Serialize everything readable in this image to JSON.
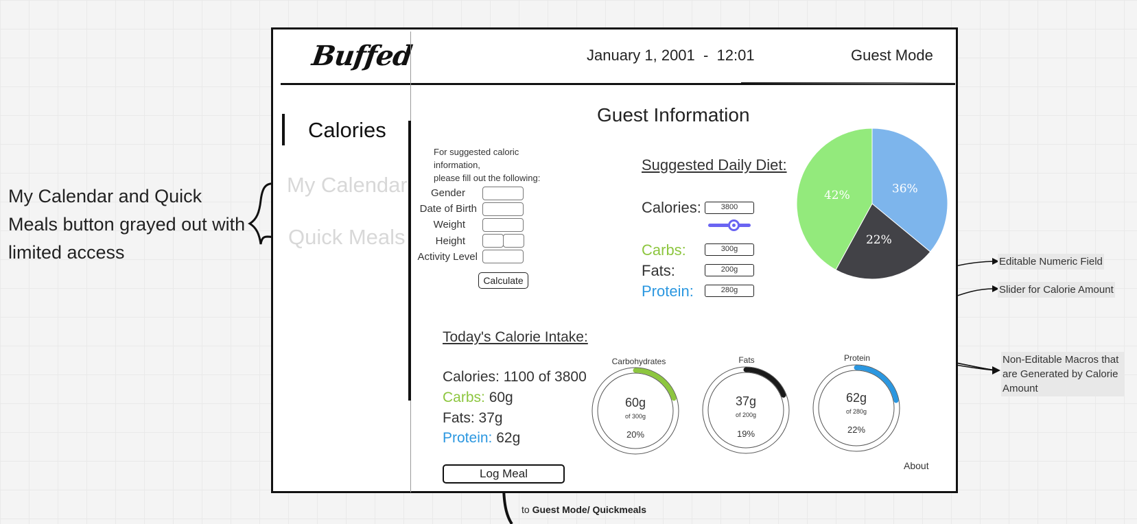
{
  "app": {
    "logo_text": "Buffed"
  },
  "header": {
    "datetime": "January 1, 2001  -  12:01",
    "mode": "Guest Mode"
  },
  "sidebar": {
    "items": [
      {
        "label": "Calories",
        "state": "active"
      },
      {
        "label": "My Calendar",
        "state": "disabled"
      },
      {
        "label": "Quick Meals",
        "state": "disabled"
      }
    ]
  },
  "annotations": {
    "left_note": "My Calendar and Quick Meals button grayed out with limited access",
    "editable_field": "Editable Numeric Field",
    "slider": "Slider for Calorie Amount",
    "non_editable": "Non-Editable Macros that are Generated by Calorie Amount"
  },
  "main": {
    "title": "Guest Information",
    "form": {
      "instructions_line1": "For suggested caloric information,",
      "instructions_line2": "please fill out the following:",
      "fields": [
        "Gender",
        "Date of Birth",
        "Weight",
        "Height",
        "Activity Level"
      ],
      "calculate_label": "Calculate"
    },
    "diet": {
      "title": "Suggested Daily Diet:",
      "calories_label": "Calories:",
      "calories_value": "3800",
      "carbs_label": "Carbs:",
      "carbs_value": "300g",
      "fats_label": "Fats:",
      "fats_value": "200g",
      "protein_label": "Protein:",
      "protein_value": "280g",
      "slider_value_fraction": 0.5
    },
    "intake": {
      "title": "Today's Calorie Intake:",
      "calories_line": "Calories: 1100 of 3800",
      "carbs_label": "Carbs:",
      "carbs_value": " 60g",
      "fats_line": "Fats: 37g",
      "protein_label": "Protein:",
      "protein_value": " 62g"
    },
    "rings": [
      {
        "title": "Carbohydrates",
        "value": "60g",
        "of": "of 300g",
        "pct": "20%",
        "fraction": 0.2,
        "color": "#8dc63f"
      },
      {
        "title": "Fats",
        "value": "37g",
        "of": "of 200g",
        "pct": "19%",
        "fraction": 0.19,
        "color": "#1a1a1a"
      },
      {
        "title": "Protein",
        "value": "62g",
        "of": "of 280g",
        "pct": "22%",
        "fraction": 0.22,
        "color": "#2b97e0"
      }
    ],
    "log_meal_label": "Log Meal",
    "about_label": "About",
    "footer_link_prefix": "to ",
    "footer_link_target": "Guest Mode/ Quickmeals"
  },
  "chart_data": {
    "type": "pie",
    "slices": [
      {
        "label": "36%",
        "value": 36,
        "color": "#7db5ec"
      },
      {
        "label": "22%",
        "value": 22,
        "color": "#424247"
      },
      {
        "label": "42%",
        "value": 42,
        "color": "#93ea7c"
      }
    ]
  },
  "colors": {
    "carbs": "#8dc63f",
    "protein": "#2b97e0",
    "slider": "#6a64f2",
    "disabled_nav": "#d8d8d8"
  }
}
